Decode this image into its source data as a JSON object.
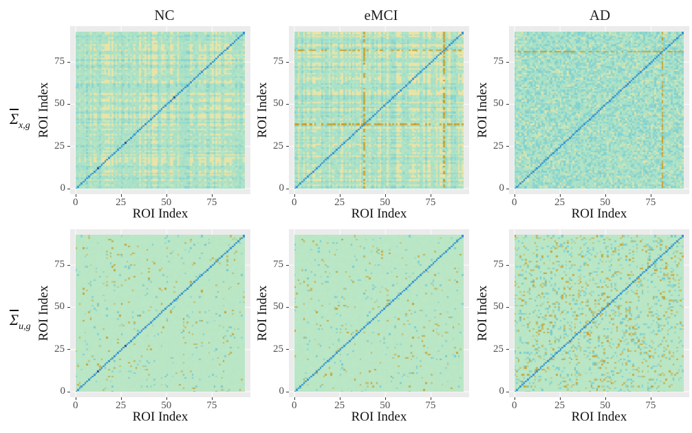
{
  "column_titles": [
    "NC",
    "eMCI",
    "AD"
  ],
  "row_labels": [
    {
      "base": "Σ",
      "sub": "x,g"
    },
    {
      "base": "Σ",
      "sub": "u,g"
    }
  ],
  "colors": {
    "panel_bg": "#ebebeb",
    "grid": "#ffffff",
    "base": "#b8e6c4",
    "diag": "#2f8fcf",
    "pos": "#c99a1f",
    "neg": "#5cc3d8",
    "band_light": "#f2e3a2"
  },
  "chart_data": [
    {
      "type": "heatmap",
      "row": "Σ̂x,g",
      "column": "NC",
      "xlabel": "ROI Index",
      "ylabel": "ROI Index",
      "xlim": [
        0,
        93
      ],
      "ylim": [
        0,
        93
      ],
      "x_ticks": [
        "0",
        "25",
        "50",
        "75"
      ],
      "y_ticks": [
        "0",
        "25",
        "50",
        "75"
      ],
      "n_rois": 93,
      "grid": true,
      "background_level": 0.15,
      "banding": "light-yellow stripes",
      "strong_rois": [],
      "hotspots_diag": [
        12,
        27,
        54
      ]
    },
    {
      "type": "heatmap",
      "row": "Σ̂x,g",
      "column": "eMCI",
      "xlabel": "ROI Index",
      "ylabel": "ROI Index",
      "xlim": [
        0,
        93
      ],
      "ylim": [
        0,
        93
      ],
      "x_ticks": [
        "0",
        "25",
        "50",
        "75"
      ],
      "y_ticks": [
        "0",
        "25",
        "50",
        "75"
      ],
      "n_rois": 93,
      "grid": true,
      "background_level": 0.15,
      "banding": "yellow/orange stripes",
      "strong_rois": [
        38,
        82
      ],
      "hotspots_diag": []
    },
    {
      "type": "heatmap",
      "row": "Σ̂x,g",
      "column": "AD",
      "xlabel": "ROI Index",
      "ylabel": "ROI Index",
      "xlim": [
        0,
        93
      ],
      "ylim": [
        0,
        93
      ],
      "x_ticks": [
        "0",
        "25",
        "50",
        "75"
      ],
      "y_ticks": [
        "0",
        "25",
        "50",
        "75"
      ],
      "n_rois": 93,
      "grid": true,
      "background_level": 0.15,
      "banding": "cyan speckle",
      "strong_rois": [
        81
      ],
      "hotspots_diag": [
        62
      ]
    },
    {
      "type": "heatmap",
      "row": "Σ̂u,g",
      "column": "NC",
      "xlabel": "ROI Index",
      "ylabel": "ROI Index",
      "xlim": [
        0,
        93
      ],
      "ylim": [
        0,
        93
      ],
      "x_ticks": [
        "0",
        "25",
        "50",
        "75"
      ],
      "y_ticks": [
        "0",
        "25",
        "50",
        "75"
      ],
      "n_rois": 93,
      "grid": true,
      "background_level": 0.05,
      "banding": "sparse",
      "strong_rois": [],
      "hotspots_diag": [
        12,
        27
      ]
    },
    {
      "type": "heatmap",
      "row": "Σ̂u,g",
      "column": "eMCI",
      "xlabel": "ROI Index",
      "ylabel": "ROI Index",
      "xlim": [
        0,
        93
      ],
      "ylim": [
        0,
        93
      ],
      "x_ticks": [
        "0",
        "25",
        "50",
        "75"
      ],
      "y_ticks": [
        "0",
        "25",
        "50",
        "75"
      ],
      "n_rois": 93,
      "grid": true,
      "background_level": 0.05,
      "banding": "sparse",
      "strong_rois": [],
      "hotspots_diag": []
    },
    {
      "type": "heatmap",
      "row": "Σ̂u,g",
      "column": "AD",
      "xlabel": "ROI Index",
      "ylabel": "ROI Index",
      "xlim": [
        0,
        93
      ],
      "ylim": [
        0,
        93
      ],
      "x_ticks": [
        "0",
        "25",
        "50",
        "75"
      ],
      "y_ticks": [
        "0",
        "25",
        "50",
        "75"
      ],
      "n_rois": 93,
      "grid": true,
      "background_level": 0.18,
      "banding": "orange speckle",
      "strong_rois": [],
      "hotspots_diag": [
        62
      ]
    }
  ]
}
